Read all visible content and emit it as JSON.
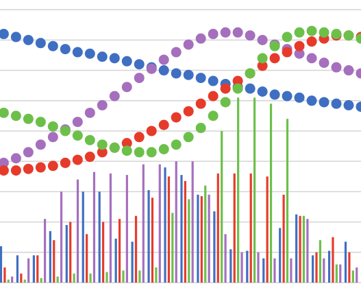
{
  "chart_data": [
    {
      "type": "line",
      "x": [
        0,
        1,
        2,
        3,
        4,
        5,
        6,
        7,
        8,
        9,
        10,
        11,
        12,
        13,
        14,
        15,
        16,
        17,
        18,
        19,
        20,
        21,
        22,
        23,
        24,
        25,
        26,
        27,
        28,
        29
      ],
      "xlim": [
        -0.3,
        29
      ],
      "ylim": [
        0,
        9.32
      ],
      "yticks": [
        0,
        1,
        2,
        3,
        4,
        5,
        6,
        7,
        8,
        9
      ],
      "grid": true,
      "series": [
        {
          "color": "#3f6fc2",
          "values": [
            8.2,
            8.1,
            8.0,
            7.9,
            7.8,
            7.7,
            7.6,
            7.55,
            7.45,
            7.4,
            7.3,
            7.2,
            7.1,
            7.0,
            6.9,
            6.85,
            6.75,
            6.65,
            6.55,
            6.45,
            6.4,
            6.3,
            6.2,
            6.15,
            6.1,
            6.0,
            5.95,
            5.9,
            5.85,
            5.8
          ]
        },
        {
          "color": "#a56fbe",
          "values": [
            3.95,
            4.1,
            4.3,
            4.55,
            4.8,
            5.05,
            5.3,
            5.6,
            5.85,
            6.15,
            6.45,
            6.75,
            7.05,
            7.35,
            7.6,
            7.85,
            8.05,
            8.2,
            8.25,
            8.25,
            8.15,
            8.0,
            7.85,
            7.7,
            7.55,
            7.4,
            7.25,
            7.1,
            7.0,
            6.9
          ]
        },
        {
          "color": "#e63b2a",
          "values": [
            3.7,
            3.7,
            3.75,
            3.8,
            3.85,
            3.95,
            4.05,
            4.15,
            4.3,
            4.45,
            4.6,
            4.8,
            5.0,
            5.2,
            5.45,
            5.65,
            5.9,
            6.15,
            6.4,
            6.65,
            6.9,
            7.15,
            7.4,
            7.6,
            7.8,
            7.95,
            8.05,
            8.15,
            8.15,
            8.1
          ]
        },
        {
          "color": "#6cc04a",
          "values": [
            5.6,
            5.5,
            5.4,
            5.3,
            5.15,
            5.0,
            4.85,
            4.7,
            4.55,
            4.45,
            4.35,
            4.3,
            4.3,
            4.4,
            4.55,
            4.8,
            5.1,
            5.5,
            5.95,
            6.4,
            6.9,
            7.4,
            7.8,
            8.1,
            8.25,
            8.3,
            8.25,
            8.2,
            8.15,
            8.05
          ]
        }
      ]
    },
    {
      "type": "bar",
      "ylim": [
        0,
        9.32
      ],
      "series": [
        {
          "color": "#3f6fc2",
          "values": [
            1.2,
            0.9,
            0.9,
            1.7,
            1.9,
            3.0,
            3.0,
            1.45,
            1.35,
            3.05,
            3.8,
            3.55,
            2.9,
            2.35,
            1.1,
            1.05,
            0.8,
            1.8,
            2.25,
            0.9,
            1.05,
            1.35
          ]
        },
        {
          "color": "#e63b2a",
          "values": [
            0.5,
            0.3,
            0.9,
            1.4,
            2.0,
            1.6,
            2.0,
            2.1,
            2.2,
            2.8,
            3.5,
            3.35,
            2.85,
            3.6,
            3.6,
            3.6,
            3.5,
            2.9,
            2.2,
            1.0,
            1.5,
            1.0
          ]
        },
        {
          "color": "#6cc04a",
          "values": [
            0.1,
            0.1,
            0.15,
            0.2,
            0.3,
            0.3,
            0.35,
            0.4,
            0.4,
            0.5,
            2.3,
            2.75,
            3.2,
            5.0,
            6.1,
            6.1,
            5.9,
            5.4,
            2.2,
            1.4,
            0.6,
            0.4
          ]
        },
        {
          "color": "#a56fbe",
          "values": [
            0.2,
            0.8,
            2.1,
            3.0,
            3.4,
            3.65,
            3.6,
            3.55,
            3.9,
            3.9,
            4.0,
            4.0,
            2.9,
            1.6,
            1.0,
            1.0,
            0.8,
            0.8,
            2.1,
            0.8,
            0.6,
            0.5
          ]
        }
      ]
    }
  ]
}
